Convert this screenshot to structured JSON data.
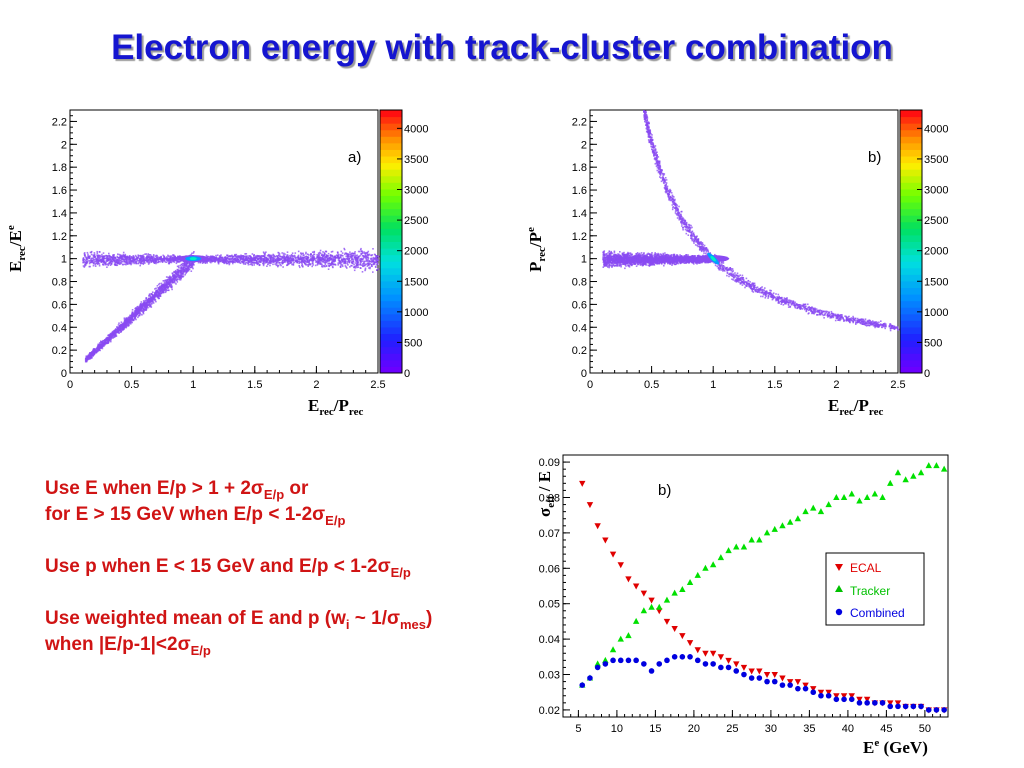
{
  "title": "Electron energy with track-cluster combination",
  "colors": {
    "title": "#1515d0",
    "text": "#d01414",
    "scatter": "#8a4bf2"
  },
  "panel_a": {
    "tag": "a)",
    "ylabel_main": "E",
    "ylabel_sub": "rec",
    "ylabel_after": "/E",
    "ylabel_sup": "e",
    "xlabel_main": "E",
    "xlabel_sub1": "rec",
    "xlabel_mid": "/P",
    "xlabel_sub2": "rec"
  },
  "panel_b": {
    "tag": "b)",
    "ylabel_main": "P",
    "ylabel_sub": "rec",
    "ylabel_after": "/P",
    "ylabel_sup": "e",
    "xlabel_main": "E",
    "xlabel_sub1": "rec",
    "xlabel_mid": "/P",
    "xlabel_sub2": "rec"
  },
  "panel_c": {
    "tag": "b)",
    "ylabel_main": "σ",
    "ylabel_sub": "eff",
    "ylabel_after": " / E",
    "xlabel_main": "E",
    "xlabel_sup": "e",
    "xlabel_after": " (GeV)"
  },
  "rules": {
    "r1a": "Use E when E/p > 1 + 2σ",
    "r1a_sub": "E/p",
    "r1a_tail": "  or",
    "r1b": "for E > 15 GeV when E/p < 1-2σ",
    "r1b_sub": "E/p",
    "r2": "Use p when E < 15 GeV and E/p < 1-2σ",
    "r2_sub": "E/p",
    "r3": "Use weighted mean of E and p (w",
    "r3_sub1": "i",
    "r3_mid": " ~ 1/σ",
    "r3_sub2": "mes",
    "r3_tail": ")",
    "r4": "when |E/p-1|<2σ",
    "r4_sub": "E/p"
  },
  "chart_data": [
    {
      "type": "heatmap",
      "tag": "a)",
      "xlim": [
        0,
        2.5
      ],
      "ylim": [
        0,
        2.3
      ],
      "xticks": [
        "0",
        "0.5",
        "1",
        "1.5",
        "2",
        "2.5"
      ],
      "yticks": [
        "0",
        "0.2",
        "0.4",
        "0.6",
        "0.8",
        "1",
        "1.2",
        "1.4",
        "1.6",
        "1.8",
        "2",
        "2.2"
      ],
      "zlim": [
        0,
        4300
      ],
      "zticks": [
        "0",
        "500",
        "1000",
        "1500",
        "2000",
        "2500",
        "3000",
        "3500",
        "4000"
      ],
      "bands": [
        {
          "shape": "horizontal",
          "y": 1.0,
          "x_range": [
            0.1,
            2.5
          ]
        },
        {
          "shape": "diagonal",
          "x_range": [
            0.12,
            1.0
          ],
          "relation": "y = x"
        }
      ],
      "peak": {
        "x": 1.0,
        "y": 1.0
      }
    },
    {
      "type": "heatmap",
      "tag": "b)",
      "xlim": [
        0,
        2.5
      ],
      "ylim": [
        0,
        2.3
      ],
      "xticks": [
        "0",
        "0.5",
        "1",
        "1.5",
        "2",
        "2.5"
      ],
      "yticks": [
        "0",
        "0.2",
        "0.4",
        "0.6",
        "0.8",
        "1",
        "1.2",
        "1.4",
        "1.6",
        "1.8",
        "2",
        "2.2"
      ],
      "zlim": [
        0,
        4300
      ],
      "zticks": [
        "0",
        "500",
        "1000",
        "1500",
        "2000",
        "2500",
        "3000",
        "3500",
        "4000"
      ],
      "bands": [
        {
          "shape": "horizontal",
          "y": 1.0,
          "x_range": [
            0.1,
            1.0
          ]
        },
        {
          "shape": "hyperbola",
          "x_range": [
            0.43,
            2.5
          ],
          "relation": "y = 1/x"
        }
      ],
      "peak": {
        "x": 1.0,
        "y": 1.0
      }
    },
    {
      "type": "scatter",
      "tag": "b)",
      "xlabel": "Ee (GeV)",
      "ylabel": "σeff / E",
      "xlim": [
        3,
        53
      ],
      "ylim": [
        0.018,
        0.092
      ],
      "xticks": [
        5,
        10,
        15,
        20,
        25,
        30,
        35,
        40,
        45,
        50
      ],
      "yticks": [
        "0.02",
        "0.03",
        "0.04",
        "0.05",
        "0.06",
        "0.07",
        "0.08",
        "0.09"
      ],
      "legend_position": "right",
      "series": [
        {
          "name": "ECAL",
          "marker": "triangle-down",
          "color": "#e00000",
          "x": [
            5.5,
            6.5,
            7.5,
            8.5,
            9.5,
            10.5,
            11.5,
            12.5,
            13.5,
            14.5,
            15.5,
            16.5,
            17.5,
            18.5,
            19.5,
            20.5,
            21.5,
            22.5,
            23.5,
            24.5,
            25.5,
            26.5,
            27.5,
            28.5,
            29.5,
            30.5,
            31.5,
            32.5,
            33.5,
            34.5,
            35.5,
            36.5,
            37.5,
            38.5,
            39.5,
            40.5,
            41.5,
            42.5,
            43.5,
            44.5,
            45.5,
            46.5,
            47.5,
            48.5,
            49.5,
            50.5,
            51.5,
            52.5
          ],
          "y": [
            0.084,
            0.078,
            0.072,
            0.068,
            0.064,
            0.061,
            0.057,
            0.055,
            0.053,
            0.051,
            0.048,
            0.045,
            0.043,
            0.041,
            0.039,
            0.037,
            0.036,
            0.036,
            0.035,
            0.034,
            0.033,
            0.032,
            0.031,
            0.031,
            0.03,
            0.03,
            0.029,
            0.028,
            0.028,
            0.027,
            0.026,
            0.025,
            0.025,
            0.024,
            0.024,
            0.024,
            0.023,
            0.023,
            0.022,
            0.022,
            0.022,
            0.022,
            0.021,
            0.021,
            0.021,
            0.02,
            0.02,
            0.02
          ]
        },
        {
          "name": "Tracker",
          "marker": "triangle-up",
          "color": "#00e000",
          "x": [
            5.5,
            6.5,
            7.5,
            8.5,
            9.5,
            10.5,
            11.5,
            12.5,
            13.5,
            14.5,
            15.5,
            16.5,
            17.5,
            18.5,
            19.5,
            20.5,
            21.5,
            22.5,
            23.5,
            24.5,
            25.5,
            26.5,
            27.5,
            28.5,
            29.5,
            30.5,
            31.5,
            32.5,
            33.5,
            34.5,
            35.5,
            36.5,
            37.5,
            38.5,
            39.5,
            40.5,
            41.5,
            42.5,
            43.5,
            44.5,
            45.5,
            46.5,
            47.5,
            48.5,
            49.5,
            50.5,
            51.5,
            52.5
          ],
          "y": [
            0.027,
            0.029,
            0.033,
            0.034,
            0.037,
            0.04,
            0.041,
            0.045,
            0.048,
            0.049,
            0.049,
            0.051,
            0.053,
            0.054,
            0.056,
            0.058,
            0.06,
            0.061,
            0.063,
            0.065,
            0.066,
            0.066,
            0.068,
            0.068,
            0.07,
            0.071,
            0.072,
            0.073,
            0.074,
            0.076,
            0.077,
            0.076,
            0.078,
            0.08,
            0.08,
            0.081,
            0.079,
            0.08,
            0.081,
            0.08,
            0.084,
            0.087,
            0.085,
            0.086,
            0.087,
            0.089,
            0.089,
            0.088
          ]
        },
        {
          "name": "Combined",
          "marker": "circle",
          "color": "#0000e0",
          "x": [
            5.5,
            6.5,
            7.5,
            8.5,
            9.5,
            10.5,
            11.5,
            12.5,
            13.5,
            14.5,
            15.5,
            16.5,
            17.5,
            18.5,
            19.5,
            20.5,
            21.5,
            22.5,
            23.5,
            24.5,
            25.5,
            26.5,
            27.5,
            28.5,
            29.5,
            30.5,
            31.5,
            32.5,
            33.5,
            34.5,
            35.5,
            36.5,
            37.5,
            38.5,
            39.5,
            40.5,
            41.5,
            42.5,
            43.5,
            44.5,
            45.5,
            46.5,
            47.5,
            48.5,
            49.5,
            50.5,
            51.5,
            52.5
          ],
          "y": [
            0.027,
            0.029,
            0.032,
            0.033,
            0.034,
            0.034,
            0.034,
            0.034,
            0.033,
            0.031,
            0.033,
            0.034,
            0.035,
            0.035,
            0.035,
            0.034,
            0.033,
            0.033,
            0.032,
            0.032,
            0.031,
            0.03,
            0.029,
            0.029,
            0.028,
            0.028,
            0.027,
            0.027,
            0.026,
            0.026,
            0.025,
            0.024,
            0.024,
            0.023,
            0.023,
            0.023,
            0.022,
            0.022,
            0.022,
            0.022,
            0.021,
            0.021,
            0.021,
            0.021,
            0.021,
            0.02,
            0.02,
            0.02
          ]
        }
      ]
    }
  ]
}
